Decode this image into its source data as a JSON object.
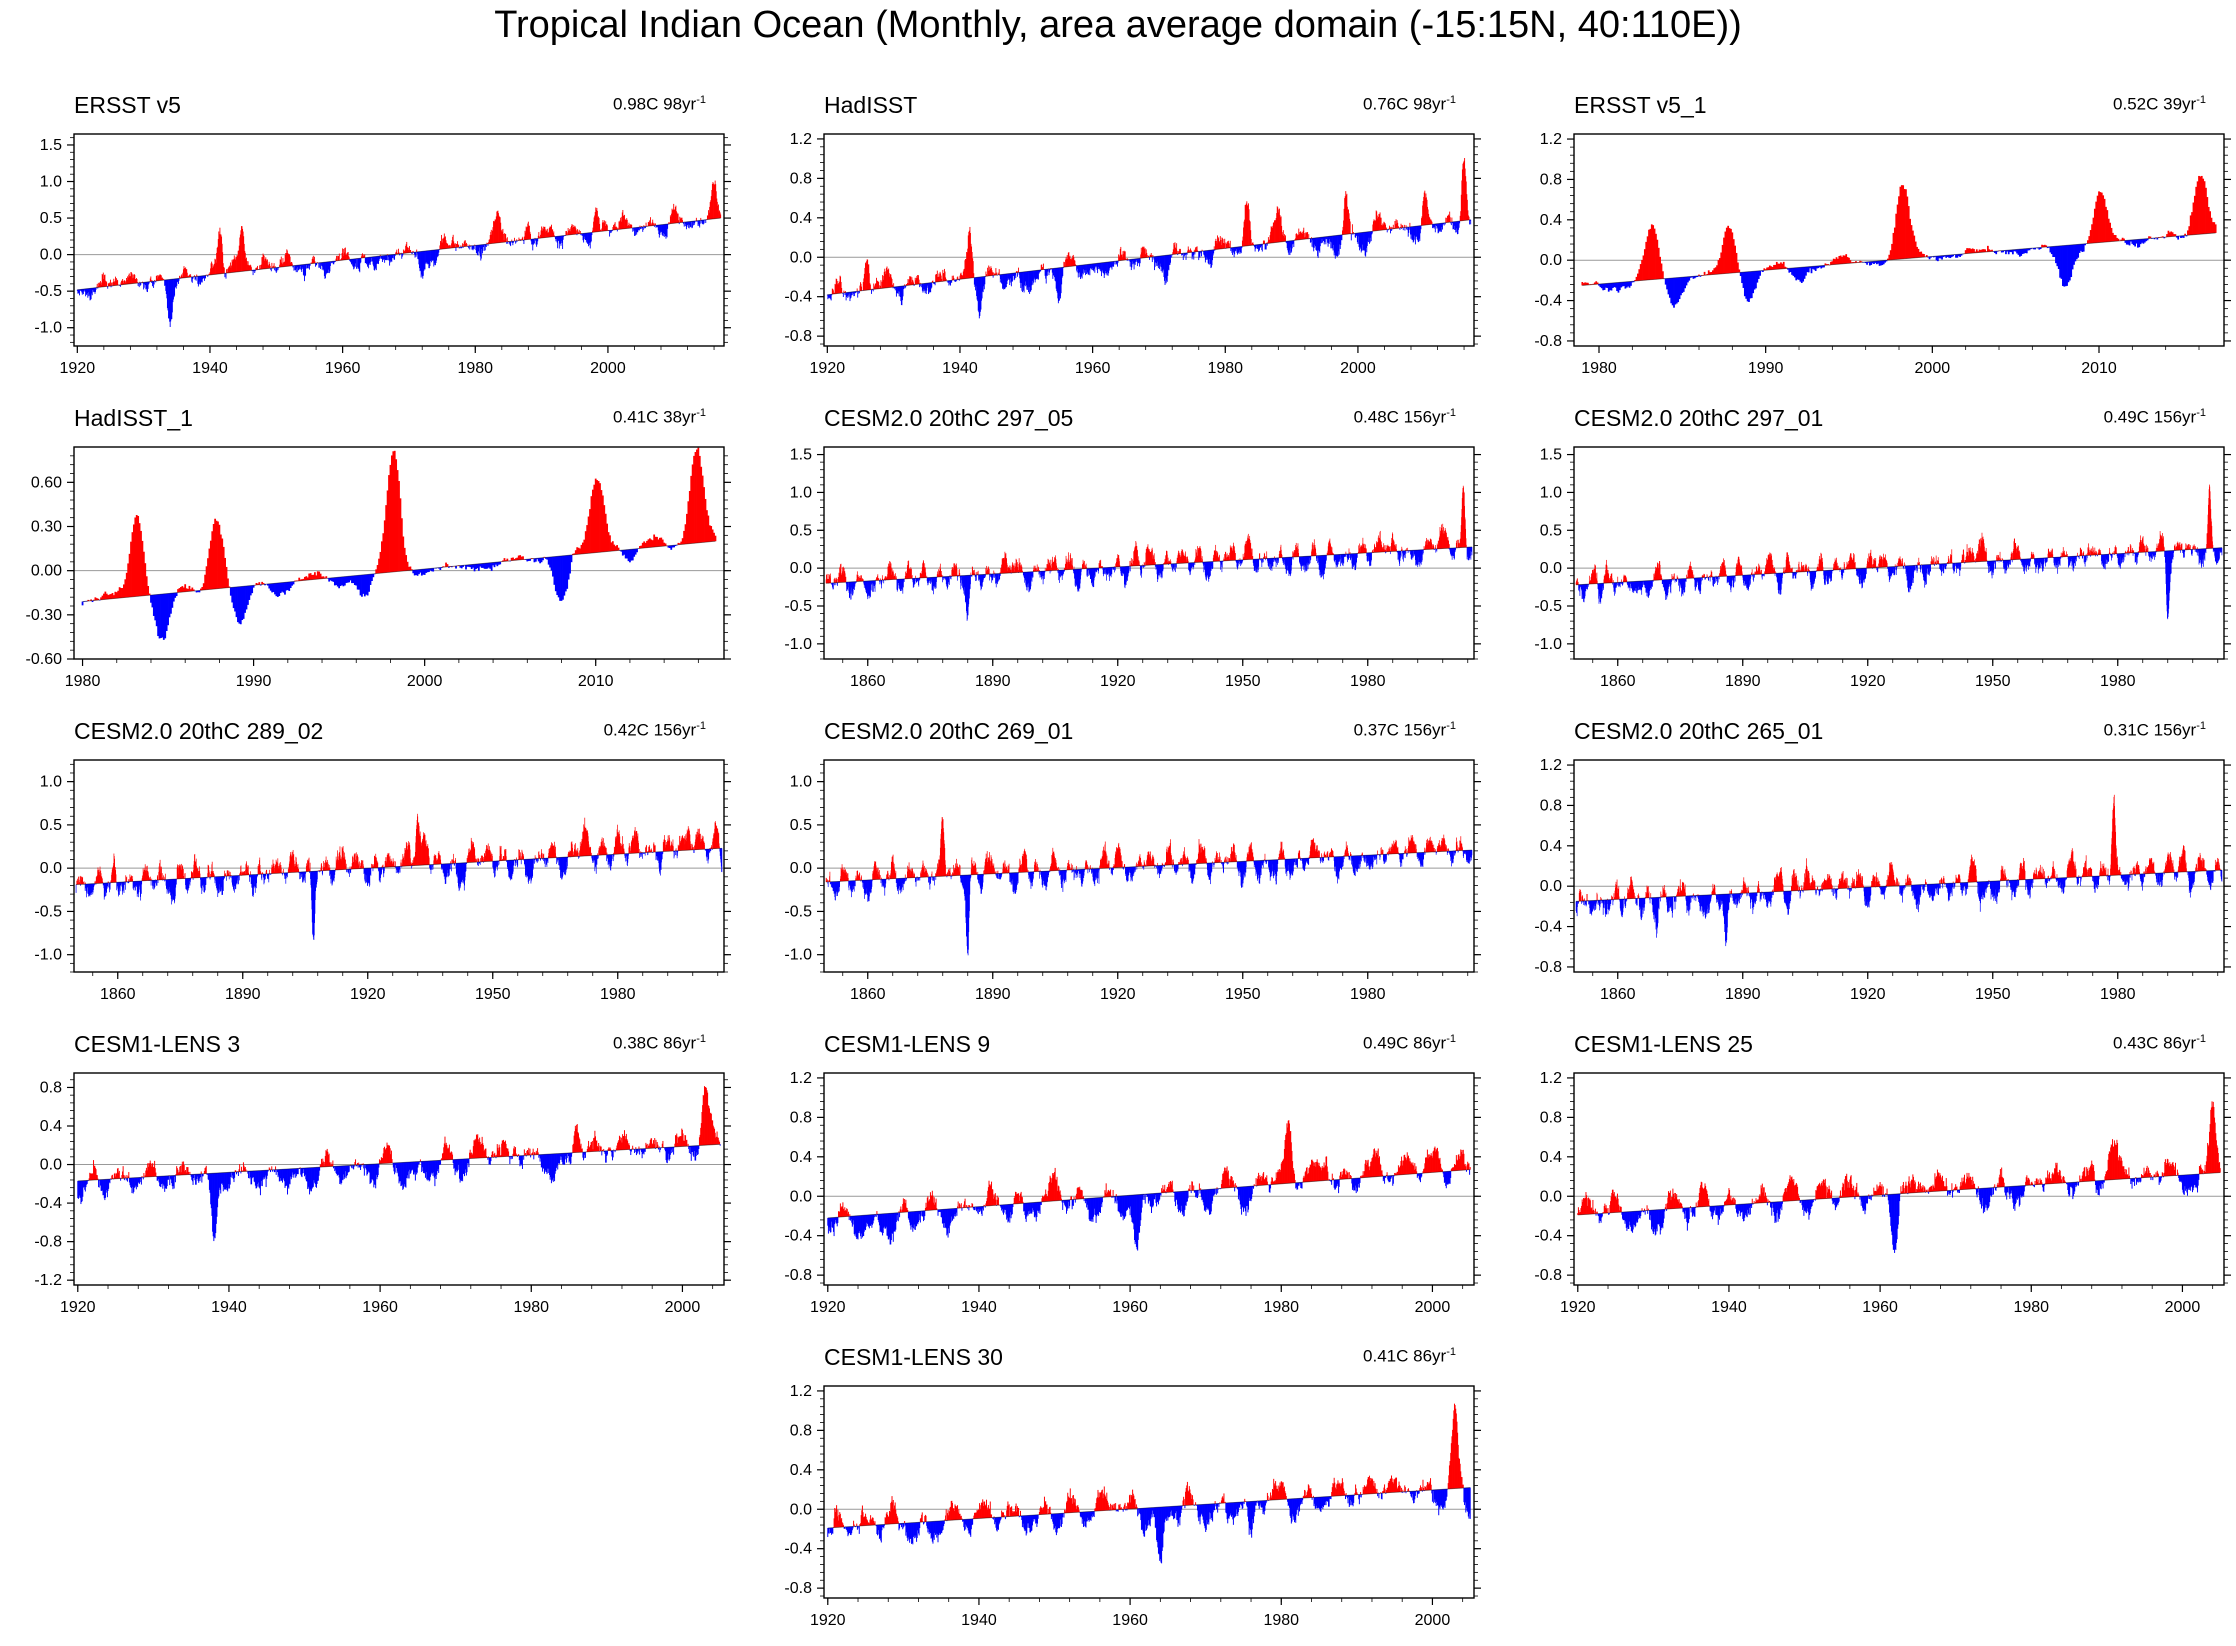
{
  "title": "Tropical Indian Ocean (Monthly, area average domain (-15:15N, 40:110E))",
  "colors": {
    "positive": "#ff0000",
    "negative": "#0000ff",
    "axis": "#000000",
    "zero_line": "#999999"
  },
  "chart_data": [
    {
      "type": "bar",
      "name": "ERSST v5",
      "trend": "0.98C 98yr",
      "trend_unit_sup": "-1",
      "xlim": [
        1919.5,
        2017.5
      ],
      "ylim": [
        -1.25,
        1.65
      ],
      "xticks": [
        1920,
        1940,
        1960,
        1980,
        2000
      ],
      "yticks": [
        -1.0,
        -0.5,
        0.0,
        0.5,
        1.0,
        1.5
      ],
      "ytick_labels": [
        "-1.0",
        "-0.5",
        "0.0",
        "0.5",
        "1.0",
        "1.5"
      ],
      "trend_start": -0.48,
      "trend_end": 0.5,
      "noise": 0.12,
      "enso": 0.1,
      "seed": 11,
      "events": [
        [
          1941.5,
          0.55
        ],
        [
          1944.8,
          0.45
        ],
        [
          1983.3,
          0.3
        ],
        [
          1988,
          0.25
        ],
        [
          1998.2,
          0.25
        ],
        [
          2010,
          0.2
        ],
        [
          2016,
          0.55
        ],
        [
          1934,
          -0.55
        ],
        [
          1972,
          -0.25
        ]
      ]
    },
    {
      "type": "bar",
      "name": "HadISST",
      "trend": "0.76C 98yr",
      "trend_unit_sup": "-1",
      "xlim": [
        1919.5,
        2017.5
      ],
      "ylim": [
        -0.9,
        1.25
      ],
      "xticks": [
        1920,
        1940,
        1960,
        1980,
        2000
      ],
      "yticks": [
        -0.8,
        -0.4,
        0.0,
        0.4,
        0.8,
        1.2
      ],
      "ytick_labels": [
        "-0.8",
        "-0.4",
        "0.0",
        "0.4",
        "0.8",
        "1.2"
      ],
      "trend_start": -0.38,
      "trend_end": 0.38,
      "noise": 0.11,
      "enso": 0.09,
      "seed": 23,
      "events": [
        [
          1941.5,
          0.45
        ],
        [
          1926,
          0.3
        ],
        [
          1983.3,
          0.4
        ],
        [
          1988,
          0.3
        ],
        [
          1998.2,
          0.5
        ],
        [
          2010,
          0.35
        ],
        [
          2016,
          0.65
        ],
        [
          1943,
          -0.35
        ],
        [
          1955,
          -0.3
        ],
        [
          1971,
          -0.3
        ]
      ]
    },
    {
      "type": "bar",
      "name": "ERSST v5_1",
      "trend": "0.52C 39yr",
      "trend_unit_sup": "-1",
      "xlim": [
        1978.5,
        2017.5
      ],
      "ylim": [
        -0.85,
        1.25
      ],
      "xticks": [
        1980,
        1990,
        2000,
        2010
      ],
      "yticks": [
        -0.8,
        -0.4,
        0.0,
        0.4,
        0.8,
        1.2
      ],
      "ytick_labels": [
        "-0.8",
        "-0.4",
        "0.0",
        "0.4",
        "0.8",
        "1.2"
      ],
      "trend_start": -0.25,
      "trend_end": 0.27,
      "noise": 0.05,
      "enso": 0.06,
      "seed": 5,
      "events": [
        [
          1983.2,
          0.5
        ],
        [
          1987.8,
          0.45
        ],
        [
          1998.2,
          0.7
        ],
        [
          2010.1,
          0.45
        ],
        [
          2016.1,
          0.65
        ],
        [
          1984.5,
          -0.3
        ],
        [
          1989,
          -0.3
        ],
        [
          2008,
          -0.3
        ],
        [
          1992,
          -0.15
        ]
      ]
    },
    {
      "type": "bar",
      "name": "HadISST_1",
      "trend": "0.41C 38yr",
      "trend_unit_sup": "-1",
      "xlim": [
        1979.5,
        2017.5
      ],
      "ylim": [
        -0.6,
        0.84
      ],
      "xticks": [
        1980,
        1990,
        2000,
        2010
      ],
      "yticks": [
        -0.6,
        -0.3,
        0.0,
        0.3,
        0.6
      ],
      "ytick_labels": [
        "-0.60",
        "-0.30",
        "0.00",
        "0.30",
        "0.60"
      ],
      "trend_start": -0.21,
      "trend_end": 0.2,
      "noise": 0.04,
      "enso": 0.05,
      "seed": 7,
      "events": [
        [
          1983.2,
          0.58
        ],
        [
          1987.8,
          0.52
        ],
        [
          1998.2,
          0.85
        ],
        [
          2010.1,
          0.5
        ],
        [
          2015.9,
          0.65
        ],
        [
          1984.7,
          -0.28
        ],
        [
          1989.2,
          -0.28
        ],
        [
          1996.5,
          -0.15
        ],
        [
          2008,
          -0.3
        ],
        [
          2012,
          -0.15
        ]
      ]
    },
    {
      "type": "bar",
      "name": "CESM2.0 20thC 297_05",
      "trend": "0.48C 156yr",
      "trend_unit_sup": "-1",
      "xlim": [
        1849.5,
        2005.5
      ],
      "ylim": [
        -1.2,
        1.6
      ],
      "xticks": [
        1860,
        1890,
        1920,
        1950,
        1980
      ],
      "yticks": [
        -1.0,
        -0.5,
        0.0,
        0.5,
        1.0,
        1.5
      ],
      "ytick_labels": [
        "-1.0",
        "-0.5",
        "0.0",
        "0.5",
        "1.0",
        "1.5"
      ],
      "trend_start": -0.2,
      "trend_end": 0.28,
      "noise": 0.14,
      "enso": 0.2,
      "seed": 31,
      "events": [
        [
          1884,
          -0.6
        ],
        [
          2003,
          0.8
        ]
      ]
    },
    {
      "type": "bar",
      "name": "CESM2.0 20thC 297_01",
      "trend": "0.49C 156yr",
      "trend_unit_sup": "-1",
      "xlim": [
        1849.5,
        2005.5
      ],
      "ylim": [
        -1.2,
        1.6
      ],
      "xticks": [
        1860,
        1890,
        1920,
        1950,
        1980
      ],
      "yticks": [
        -1.0,
        -0.5,
        0.0,
        0.5,
        1.0,
        1.5
      ],
      "ytick_labels": [
        "-1.0",
        "-0.5",
        "0.0",
        "0.5",
        "1.0",
        "1.5"
      ],
      "trend_start": -0.22,
      "trend_end": 0.27,
      "noise": 0.14,
      "enso": 0.2,
      "seed": 37,
      "events": [
        [
          1992,
          -0.75
        ],
        [
          2002,
          0.8
        ]
      ]
    },
    {
      "type": "bar",
      "name": "CESM2.0 20thC 289_02",
      "trend": "0.42C 156yr",
      "trend_unit_sup": "-1",
      "xlim": [
        1849.5,
        2005.5
      ],
      "ylim": [
        -1.2,
        1.25
      ],
      "xticks": [
        1860,
        1890,
        1920,
        1950,
        1980
      ],
      "yticks": [
        -1.0,
        -0.5,
        0.0,
        0.5,
        1.0
      ],
      "ytick_labels": [
        "-1.0",
        "-0.5",
        "0.0",
        "0.5",
        "1.0"
      ],
      "trend_start": -0.19,
      "trend_end": 0.23,
      "noise": 0.14,
      "enso": 0.2,
      "seed": 41,
      "events": [
        [
          1907,
          -0.85
        ],
        [
          1932,
          0.5
        ]
      ]
    },
    {
      "type": "bar",
      "name": "CESM2.0 20thC 269_01",
      "trend": "0.37C 156yr",
      "trend_unit_sup": "-1",
      "xlim": [
        1849.5,
        2005.5
      ],
      "ylim": [
        -1.2,
        1.25
      ],
      "xticks": [
        1860,
        1890,
        1920,
        1950,
        1980
      ],
      "yticks": [
        -1.0,
        -0.5,
        0.0,
        0.5,
        1.0
      ],
      "ytick_labels": [
        "-1.0",
        "-0.5",
        "0.0",
        "0.5",
        "1.0"
      ],
      "trend_start": -0.16,
      "trend_end": 0.21,
      "noise": 0.13,
      "enso": 0.2,
      "seed": 43,
      "events": [
        [
          1884,
          -0.8
        ],
        [
          1878,
          0.55
        ]
      ]
    },
    {
      "type": "bar",
      "name": "CESM2.0 20thC 265_01",
      "trend": "0.31C 156yr",
      "trend_unit_sup": "-1",
      "xlim": [
        1849.5,
        2005.5
      ],
      "ylim": [
        -0.85,
        1.25
      ],
      "xticks": [
        1860,
        1890,
        1920,
        1950,
        1980
      ],
      "yticks": [
        -0.8,
        -0.4,
        0.0,
        0.4,
        0.8,
        1.2
      ],
      "ytick_labels": [
        "-0.8",
        "-0.4",
        "0.0",
        "0.4",
        "0.8",
        "1.2"
      ],
      "trend_start": -0.15,
      "trend_end": 0.16,
      "noise": 0.12,
      "enso": 0.17,
      "seed": 47,
      "events": [
        [
          1979,
          0.65
        ],
        [
          1886,
          -0.55
        ]
      ]
    },
    {
      "type": "bar",
      "name": "CESM1-LENS 3",
      "trend": "0.38C 86yr",
      "trend_unit_sup": "-1",
      "xlim": [
        1919.5,
        2005.5
      ],
      "ylim": [
        -1.25,
        0.95
      ],
      "xticks": [
        1920,
        1940,
        1960,
        1980,
        2000
      ],
      "yticks": [
        -1.2,
        -0.8,
        -0.4,
        0.0,
        0.4,
        0.8
      ],
      "ytick_labels": [
        "-1.2",
        "-0.8",
        "-0.4",
        "0.0",
        "0.4",
        "0.8"
      ],
      "trend_start": -0.17,
      "trend_end": 0.21,
      "noise": 0.12,
      "enso": 0.18,
      "seed": 53,
      "events": [
        [
          1938,
          -0.85
        ],
        [
          1986,
          0.45
        ],
        [
          2003,
          0.5
        ]
      ]
    },
    {
      "type": "bar",
      "name": "CESM1-LENS 9",
      "trend": "0.49C 86yr",
      "trend_unit_sup": "-1",
      "xlim": [
        1919.5,
        2005.5
      ],
      "ylim": [
        -0.9,
        1.25
      ],
      "xticks": [
        1920,
        1940,
        1960,
        1980,
        2000
      ],
      "yticks": [
        -0.8,
        -0.4,
        0.0,
        0.4,
        0.8,
        1.2
      ],
      "ytick_labels": [
        "-0.8",
        "-0.4",
        "0.0",
        "0.4",
        "0.8",
        "1.2"
      ],
      "trend_start": -0.22,
      "trend_end": 0.27,
      "noise": 0.13,
      "enso": 0.2,
      "seed": 59,
      "events": [
        [
          1961,
          -0.6
        ],
        [
          1981,
          0.55
        ]
      ]
    },
    {
      "type": "bar",
      "name": "CESM1-LENS 25",
      "trend": "0.43C 86yr",
      "trend_unit_sup": "-1",
      "xlim": [
        1919.5,
        2005.5
      ],
      "ylim": [
        -0.9,
        1.25
      ],
      "xticks": [
        1920,
        1940,
        1960,
        1980,
        2000
      ],
      "yticks": [
        -0.8,
        -0.4,
        0.0,
        0.4,
        0.8,
        1.2
      ],
      "ytick_labels": [
        "-0.8",
        "-0.4",
        "0.0",
        "0.4",
        "0.8",
        "1.2"
      ],
      "trend_start": -0.19,
      "trend_end": 0.24,
      "noise": 0.13,
      "enso": 0.2,
      "seed": 61,
      "events": [
        [
          2004,
          0.8
        ],
        [
          1962,
          -0.5
        ]
      ]
    },
    {
      "type": "bar",
      "name": "CESM1-LENS 30",
      "trend": "0.41C 86yr",
      "trend_unit_sup": "-1",
      "xlim": [
        1919.5,
        2005.5
      ],
      "ylim": [
        -0.9,
        1.25
      ],
      "xticks": [
        1920,
        1940,
        1960,
        1980,
        2000
      ],
      "yticks": [
        -0.8,
        -0.4,
        0.0,
        0.4,
        0.8,
        1.2
      ],
      "ytick_labels": [
        "-0.8",
        "-0.4",
        "0.0",
        "0.4",
        "0.8",
        "1.2"
      ],
      "trend_start": -0.19,
      "trend_end": 0.22,
      "noise": 0.13,
      "enso": 0.2,
      "seed": 67,
      "events": [
        [
          2003,
          0.75
        ],
        [
          1964,
          -0.55
        ],
        [
          1976,
          -0.5
        ]
      ]
    }
  ]
}
